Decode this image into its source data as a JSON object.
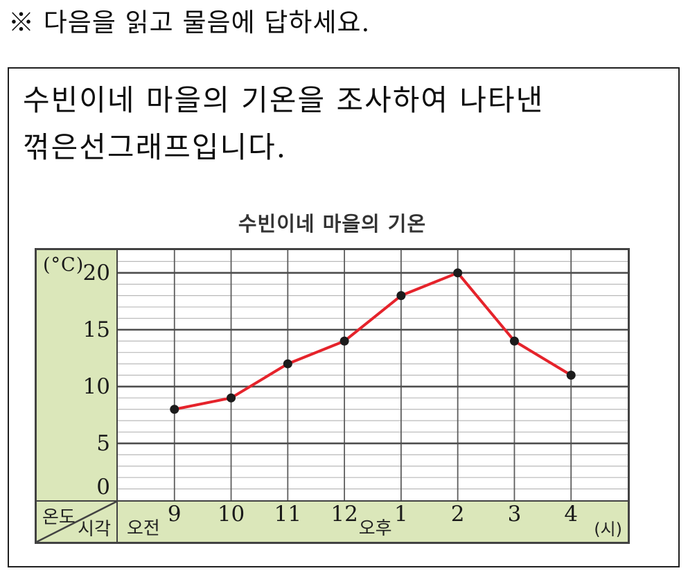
{
  "instruction": "※ 다음을 읽고 물음에 답하세요.",
  "problem_text": {
    "line1": "수빈이네 마을의 기온을 조사하여 나타낸",
    "line2": "꺾은선그래프입니다."
  },
  "chart_data": {
    "type": "line",
    "title": "수빈이네 마을의 기온",
    "y_axis_unit": "(°C)",
    "x_axis_unit": "(시)",
    "corner_row_label": "온도",
    "corner_col_label": "시각",
    "am_label": "오전",
    "pm_label": "오후",
    "categories": [
      "9",
      "10",
      "11",
      "12",
      "1",
      "2",
      "3",
      "4"
    ],
    "values": [
      8,
      9,
      12,
      14,
      18,
      20,
      14,
      11
    ],
    "y_ticks": [
      0,
      5,
      10,
      15,
      20
    ],
    "ylim": [
      0,
      22
    ],
    "y_minor_step": 1,
    "x_intervals": 9,
    "grid": true,
    "legend": "none",
    "colors": {
      "line": "#e5232b",
      "point": "#1c1c1c",
      "panel_green": "#dbe7ba",
      "grid_minor": "#b9b9b9",
      "grid_major": "#4d4d4d",
      "grid_vertical": "#5d5d5d",
      "border": "#424242"
    }
  }
}
